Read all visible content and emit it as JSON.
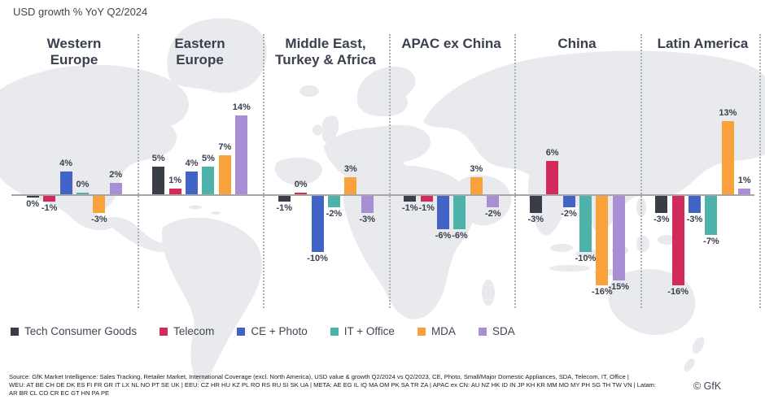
{
  "title": "USD growth % YoY Q2/2024",
  "chart_data": {
    "type": "bar",
    "title": "USD growth % YoY Q2/2024",
    "unit": "%",
    "baseline": 0,
    "legend_position": "bottom",
    "series": [
      {
        "name": "Tech Consumer Goods",
        "color": "#393d45"
      },
      {
        "name": "Telecom",
        "color": "#d22a5b"
      },
      {
        "name": "CE + Photo",
        "color": "#4164c6"
      },
      {
        "name": "IT + Office",
        "color": "#4db3aa"
      },
      {
        "name": "MDA",
        "color": "#f9a23b"
      },
      {
        "name": "SDA",
        "color": "#a88fd4"
      }
    ],
    "regions": [
      {
        "name_lines": [
          "Western",
          "Europe"
        ],
        "values": [
          0,
          -1,
          4,
          0,
          -3,
          2
        ],
        "labels": [
          "0%",
          "-1%",
          "4%",
          "0%",
          "-3%",
          "2%"
        ],
        "label_pos": [
          "below",
          "below",
          "above",
          "above",
          "below",
          "above"
        ]
      },
      {
        "name_lines": [
          "Eastern",
          "Europe"
        ],
        "values": [
          5,
          1,
          4,
          5,
          7,
          14
        ],
        "labels": [
          "5%",
          "1%",
          "4%",
          "5%",
          "7%",
          "14%"
        ],
        "label_pos": [
          "above",
          "above",
          "above",
          "above",
          "above",
          "above"
        ]
      },
      {
        "name_lines": [
          "Middle East,",
          "Turkey & Africa"
        ],
        "values": [
          -1,
          0,
          -10,
          -2,
          3,
          -3
        ],
        "labels": [
          "-1%",
          "0%",
          "-10%",
          "-2%",
          "3%",
          "-3%"
        ],
        "label_pos": [
          "below",
          "above",
          "below",
          "below",
          "above",
          "below"
        ]
      },
      {
        "name_lines": [
          "APAC ex China"
        ],
        "values": [
          -1,
          -1,
          -6,
          -6,
          3,
          -2
        ],
        "labels": [
          "-1%",
          "-1%",
          "-6%",
          "-6%",
          "3%",
          "-2%"
        ],
        "label_pos": [
          "below",
          "below",
          "below",
          "below",
          "above",
          "below"
        ]
      },
      {
        "name_lines": [
          "China"
        ],
        "values": [
          -3,
          6,
          -2,
          -10,
          -16,
          -15
        ],
        "labels": [
          "-3%",
          "6%",
          "-2%",
          "-10%",
          "-16%",
          "-15%"
        ],
        "label_pos": [
          "below",
          "above",
          "below",
          "below",
          "below",
          "below"
        ]
      },
      {
        "name_lines": [
          "Latin America"
        ],
        "values": [
          -3,
          -16,
          -3,
          -7,
          13,
          1
        ],
        "labels": [
          "-3%",
          "-16%",
          "-3%",
          "-7%",
          "13%",
          "1%"
        ],
        "label_pos": [
          "below",
          "below",
          "below",
          "below",
          "above",
          "above"
        ]
      }
    ]
  },
  "footer": {
    "line1": "Source: GfK Market Intelligence: Sales Tracking, Retailer Market, International Coverage (excl. North America), USD value & growth Q2/2024 vs Q2/2023, CE, Photo, Small/Major Domestic Appliances, SDA, Telecom, IT, Office |",
    "line2": "WEU: AT BE CH DE DK ES FI FR GR IT LX NL NO PT SE UK | EEU: CZ HR HU KZ PL RO RS RU SI SK UA |  META: AE EG IL IQ MA OM PK SA TR ZA | APAC ex CN: AU NZ HK ID IN JP KH KR MM MO MY PH SG TH TW VN | Latam:",
    "line3": "AR BR CL CO CR EC GT HN PA PE",
    "copyright": "© GfK"
  }
}
